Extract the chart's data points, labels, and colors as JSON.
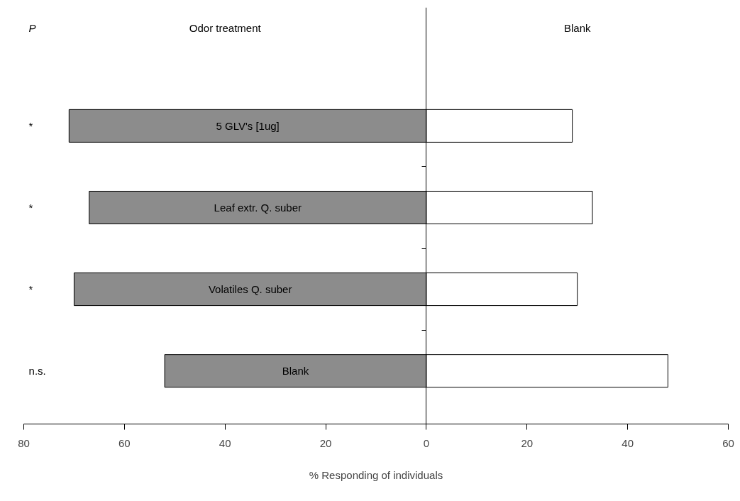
{
  "chart_data": {
    "type": "bar",
    "orientation": "horizontal",
    "stacked": true,
    "xlabel": "% Responding of individuals",
    "categories": [
      "5 GLV's [1ug]",
      "Leaf extr. Q. suber",
      "Volatiles Q. suber",
      "Blank"
    ],
    "series": [
      {
        "color": "#8c8c8c",
        "values": [
          -71,
          -67,
          -70,
          -52
        ]
      },
      {
        "color": "#ffffff",
        "values": [
          29,
          33,
          30,
          48
        ]
      }
    ],
    "xlim": [
      -80,
      60
    ],
    "xticks": [
      {
        "value": -80,
        "label": "80"
      },
      {
        "value": -60,
        "label": "60"
      },
      {
        "value": -40,
        "label": "40"
      },
      {
        "value": -20,
        "label": "20"
      },
      0,
      20,
      40,
      60
    ],
    "annotations": [
      "P",
      "Odor treatment",
      "Blank",
      "*",
      "*",
      "*",
      "n.s."
    ]
  }
}
